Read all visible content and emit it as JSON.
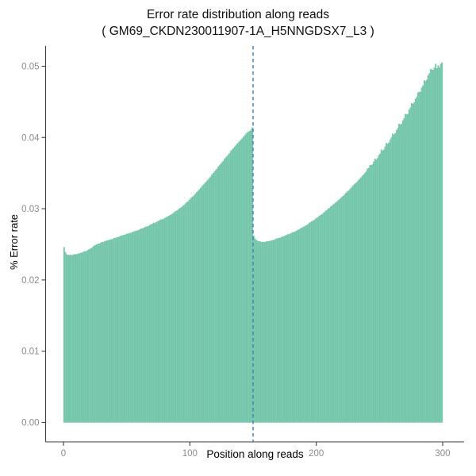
{
  "header": {
    "title": "Error rate distribution along reads",
    "subtitle": "( GM69_CKDN230011907-1A_H5NNGDSX7_L3 )"
  },
  "chart_data": {
    "type": "bar",
    "title": "Error rate distribution along reads",
    "subtitle": "( GM69_CKDN230011907-1A_H5NNGDSX7_L3 )",
    "xlabel": "Position along reads",
    "ylabel": "% Error rate",
    "xlim": [
      0,
      300
    ],
    "ylim": [
      0,
      0.05
    ],
    "x_ticks": [
      0,
      100,
      200,
      300
    ],
    "y_ticks": [
      0,
      0.01,
      0.02,
      0.03,
      0.04,
      0.05
    ],
    "y_tick_labels": [
      "0.00",
      "0.01",
      "0.02",
      "0.03",
      "0.04",
      "0.05"
    ],
    "grid": false,
    "legend": "none",
    "bar_color": "#7ecbb1",
    "bar_edge_color": "#63bda0",
    "axis_color": "#3f3f3f",
    "tick_label_color": "#8a8a8a",
    "vline": {
      "x": 150,
      "style": "dashed",
      "color": "#3e7cb7"
    },
    "position_start": 1,
    "position_end": 300,
    "values": [
      0.0246,
      0.0239,
      0.0236,
      0.0235,
      0.0235,
      0.0235,
      0.0235,
      0.0235,
      0.0236,
      0.0236,
      0.0236,
      0.0237,
      0.0237,
      0.0238,
      0.0238,
      0.0239,
      0.024,
      0.024,
      0.0241,
      0.0242,
      0.0243,
      0.0244,
      0.0245,
      0.0247,
      0.0248,
      0.0249,
      0.025,
      0.0251,
      0.0251,
      0.0252,
      0.0253,
      0.0253,
      0.0254,
      0.0255,
      0.0255,
      0.0256,
      0.0256,
      0.0257,
      0.0257,
      0.0258,
      0.0259,
      0.0259,
      0.026,
      0.026,
      0.0261,
      0.0262,
      0.0262,
      0.0263,
      0.0263,
      0.0264,
      0.0265,
      0.0265,
      0.0266,
      0.0266,
      0.0267,
      0.0268,
      0.0268,
      0.0269,
      0.0269,
      0.027,
      0.0271,
      0.0272,
      0.0272,
      0.0273,
      0.0274,
      0.0275,
      0.0275,
      0.0276,
      0.0277,
      0.0278,
      0.0279,
      0.028,
      0.028,
      0.0281,
      0.0282,
      0.0283,
      0.0284,
      0.0285,
      0.0285,
      0.0286,
      0.0287,
      0.0288,
      0.0289,
      0.029,
      0.0291,
      0.0292,
      0.0293,
      0.0295,
      0.0296,
      0.0297,
      0.0298,
      0.03,
      0.0301,
      0.0302,
      0.0304,
      0.0305,
      0.0307,
      0.0309,
      0.031,
      0.0312,
      0.0314,
      0.0316,
      0.0317,
      0.0319,
      0.0321,
      0.0323,
      0.0325,
      0.0327,
      0.0329,
      0.0331,
      0.0333,
      0.0335,
      0.0337,
      0.0339,
      0.0341,
      0.0343,
      0.0345,
      0.0348,
      0.035,
      0.0352,
      0.0354,
      0.0356,
      0.0359,
      0.0361,
      0.0363,
      0.0365,
      0.0367,
      0.037,
      0.0372,
      0.0374,
      0.0376,
      0.0378,
      0.0381,
      0.0383,
      0.0385,
      0.0387,
      0.0389,
      0.0391,
      0.0393,
      0.0395,
      0.0397,
      0.0399,
      0.0401,
      0.0403,
      0.0405,
      0.0407,
      0.0408,
      0.0409,
      0.0411,
      0.0414,
      0.0262,
      0.0258,
      0.0256,
      0.0255,
      0.0254,
      0.0254,
      0.0253,
      0.0253,
      0.0253,
      0.0253,
      0.0254,
      0.0254,
      0.0254,
      0.0255,
      0.0255,
      0.0256,
      0.0256,
      0.0257,
      0.0258,
      0.0258,
      0.0259,
      0.0259,
      0.026,
      0.0261,
      0.0261,
      0.0262,
      0.0263,
      0.0264,
      0.0264,
      0.0265,
      0.0266,
      0.0267,
      0.0267,
      0.0268,
      0.0269,
      0.027,
      0.0271,
      0.0272,
      0.0273,
      0.0274,
      0.0275,
      0.0276,
      0.0277,
      0.0278,
      0.028,
      0.0281,
      0.0282,
      0.0283,
      0.0284,
      0.0286,
      0.0287,
      0.0288,
      0.029,
      0.0291,
      0.0292,
      0.0294,
      0.0295,
      0.0297,
      0.0298,
      0.03,
      0.0301,
      0.0303,
      0.0304,
      0.0306,
      0.0307,
      0.0309,
      0.031,
      0.0312,
      0.0313,
      0.0315,
      0.0317,
      0.0318,
      0.032,
      0.0322,
      0.0324,
      0.0325,
      0.0327,
      0.0329,
      0.0331,
      0.0333,
      0.0335,
      0.0336,
      0.0338,
      0.034,
      0.0342,
      0.0344,
      0.0346,
      0.0348,
      0.035,
      0.0352,
      0.0356,
      0.0357,
      0.0361,
      0.0361,
      0.0362,
      0.0366,
      0.037,
      0.0369,
      0.0371,
      0.0375,
      0.0377,
      0.0383,
      0.0381,
      0.0383,
      0.0387,
      0.0392,
      0.0391,
      0.0393,
      0.0397,
      0.04,
      0.0405,
      0.0404,
      0.0406,
      0.041,
      0.0413,
      0.0419,
      0.0418,
      0.0419,
      0.0424,
      0.0427,
      0.0433,
      0.0432,
      0.0433,
      0.0439,
      0.0442,
      0.0448,
      0.0447,
      0.0449,
      0.0454,
      0.0457,
      0.0463,
      0.0464,
      0.0464,
      0.047,
      0.0473,
      0.048,
      0.0479,
      0.0481,
      0.0487,
      0.049,
      0.0496,
      0.0495,
      0.0495,
      0.0498,
      0.0503,
      0.0497,
      0.0501,
      0.0498,
      0.0503,
      0.0505
    ]
  }
}
